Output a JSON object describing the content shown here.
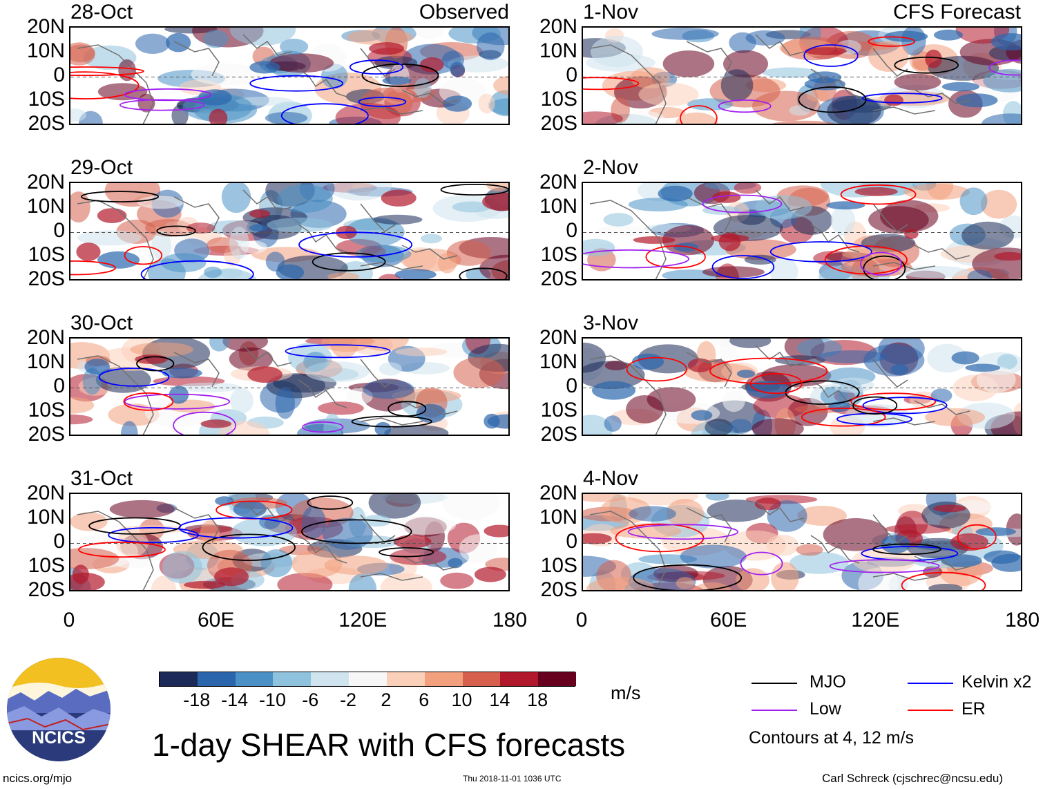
{
  "main_title": "1-day SHEAR with CFS forecasts",
  "observed_label": "Observed",
  "forecast_label": "CFS Forecast",
  "units": "m/s",
  "contour_note": "Contours at 4, 12 m/s",
  "footer": {
    "left": "ncics.org/mjo",
    "center": "Thu 2018-11-01 1036 UTC",
    "right": "Carl Schreck (cjschrec@ncsu.edu)",
    "logo_text": "NCICS"
  },
  "legend": [
    {
      "name": "MJO",
      "color": "#000000"
    },
    {
      "name": "Kelvin x2",
      "color": "#0000ff"
    },
    {
      "name": "Low",
      "color": "#a020f0"
    },
    {
      "name": "ER",
      "color": "#ff0000"
    }
  ],
  "colors": {
    "levels": [
      "#1b2a58",
      "#2b66ad",
      "#4b91c5",
      "#8fc2dd",
      "#cfe4ef",
      "#f7f7f7",
      "#fbd0b9",
      "#f2a07e",
      "#d6604d",
      "#b2182b",
      "#67001f"
    ],
    "coast": "#707070"
  },
  "chart_data": {
    "type": "heatmap",
    "colorbar_ticks": [
      "-18",
      "-14",
      "-10",
      "-6",
      "-2",
      "2",
      "6",
      "10",
      "14",
      "18"
    ],
    "x_ticks": [
      "0",
      "60E",
      "120E",
      "180"
    ],
    "y_ticks": [
      "20N",
      "10N",
      "0",
      "10S",
      "20S"
    ],
    "xlim": [
      0,
      180
    ],
    "ylim": [
      -20,
      20
    ],
    "observed_dates": [
      "28-Oct",
      "29-Oct",
      "30-Oct",
      "31-Oct"
    ],
    "forecast_dates": [
      "1-Nov",
      "2-Nov",
      "3-Nov",
      "4-Nov"
    ],
    "contour_levels_ms": [
      4,
      12
    ]
  }
}
